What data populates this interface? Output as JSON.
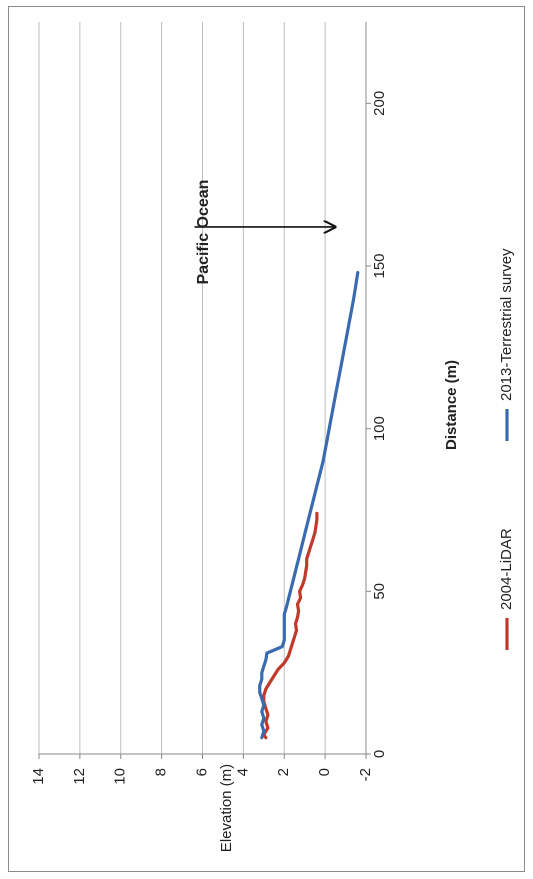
{
  "chart_data": {
    "type": "line",
    "title": "",
    "xlabel": "Distance (m)",
    "ylabel": "Elevation (m)",
    "xlim": [
      0,
      225
    ],
    "ylim": [
      -2,
      14
    ],
    "xticks": [
      "0",
      "50",
      "100",
      "150",
      "200"
    ],
    "yticks": [
      "-2",
      "0",
      "2",
      "4",
      "6",
      "8",
      "10",
      "12",
      "14"
    ],
    "grid": "horizontal-major",
    "legend_position": "bottom",
    "orientation": "rotated-90-ccw",
    "series": [
      {
        "name": "2004-LiDAR",
        "color": "#c0392b",
        "x": [
          5,
          6,
          8,
          10,
          12,
          14,
          16,
          18,
          20,
          22,
          24,
          26,
          28,
          30,
          32,
          34,
          36,
          38,
          40,
          42,
          44,
          46,
          48,
          50,
          52,
          54,
          56,
          58,
          60,
          62,
          64,
          66,
          68,
          70,
          72,
          74
        ],
        "y": [
          2.9,
          3.0,
          2.8,
          2.9,
          2.8,
          2.9,
          3.0,
          3.0,
          2.9,
          2.7,
          2.5,
          2.3,
          2.0,
          1.8,
          1.7,
          1.6,
          1.5,
          1.4,
          1.45,
          1.35,
          1.3,
          1.35,
          1.2,
          1.25,
          1.1,
          1.0,
          0.95,
          0.9,
          0.9,
          0.8,
          0.7,
          0.6,
          0.5,
          0.45,
          0.4,
          0.4
        ]
      },
      {
        "name": "2013-Terrestrial survey",
        "color": "#3a6bb0",
        "x": [
          5,
          7,
          9,
          11,
          13,
          15,
          17,
          19,
          21,
          23,
          25,
          27,
          29,
          31,
          33,
          35,
          37,
          39,
          41,
          43,
          45,
          50,
          60,
          70,
          80,
          90,
          100,
          110,
          120,
          130,
          140,
          148
        ],
        "y": [
          3.1,
          3.0,
          3.1,
          3.0,
          3.1,
          3.0,
          3.1,
          3.2,
          3.2,
          3.1,
          3.1,
          3.0,
          2.9,
          2.85,
          2.1,
          2.0,
          2.0,
          2.0,
          2.0,
          2.0,
          1.9,
          1.7,
          1.3,
          0.9,
          0.5,
          0.1,
          -0.2,
          -0.5,
          -0.8,
          -1.1,
          -1.4,
          -1.6
        ]
      }
    ],
    "annotations": [
      {
        "text": "Pacific Ocean",
        "arrow_from_x": 162,
        "arrow_to_x": 162,
        "arrow_from_y": 6.0,
        "arrow_to_y": 0.0
      }
    ]
  }
}
